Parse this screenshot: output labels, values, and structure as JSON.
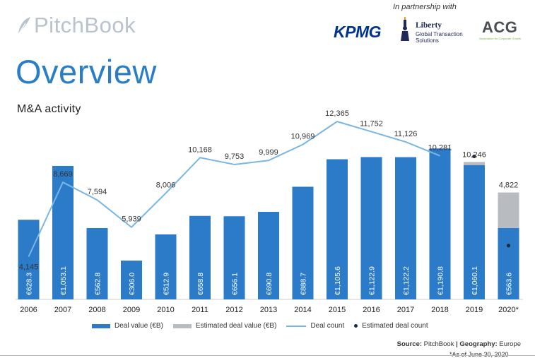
{
  "header": {
    "brand": "PitchBook",
    "partner_label": "In partnership with",
    "partners": {
      "kpmg": "KPMG",
      "liberty_name": "Liberty",
      "liberty_sub": "Global Transaction Solutions",
      "acg": "ACG",
      "acg_sub": "Association for Corporate Growth"
    }
  },
  "page_title": "Overview",
  "subtitle": "M&A activity",
  "colors": {
    "bar": "#2b7bc9",
    "estimated": "#b8bcc1",
    "line": "#79b7e2",
    "dot": "#1f2a38",
    "title": "#2a7dc7"
  },
  "chart_data": {
    "type": "bar",
    "categories": [
      "2006",
      "2007",
      "2008",
      "2009",
      "2010",
      "2011",
      "2012",
      "2013",
      "2014",
      "2015",
      "2016",
      "2017",
      "2018",
      "2019",
      "2020*"
    ],
    "series": [
      {
        "name": "Deal value (€B)",
        "type": "bar",
        "values": [
          628.3,
          1053.1,
          562.8,
          306.0,
          512.9,
          658.8,
          656.1,
          690.8,
          888.7,
          1105.6,
          1122.9,
          1122.2,
          1190.8,
          1060.1,
          563.6
        ],
        "labels": [
          "€628.3",
          "€1,053.1",
          "€562.8",
          "€306.0",
          "€512.9",
          "€658.8",
          "€656.1",
          "€690.8",
          "€888.7",
          "€1,105.6",
          "€1,122.9",
          "€1,122.2",
          "€1,190.8",
          "€1,060.1",
          "€563.6"
        ]
      },
      {
        "name": "Estimated deal value (€B)",
        "type": "bar-stacked",
        "values": [
          0,
          0,
          0,
          0,
          0,
          0,
          0,
          0,
          0,
          0,
          0,
          0,
          0,
          24,
          280
        ]
      },
      {
        "name": "Deal count",
        "type": "line",
        "values": [
          4145,
          8669,
          7594,
          5939,
          8006,
          10168,
          9753,
          9999,
          10969,
          12365,
          11752,
          11126,
          10281,
          null,
          null
        ],
        "labels": [
          "4,145",
          "8,669",
          "7,594",
          "5,939",
          "8,006",
          "10,168",
          "9,753",
          "9,999",
          "10,969",
          "12,365",
          "11,752",
          "11,126",
          "10,281",
          "",
          ""
        ]
      },
      {
        "name": "Estimated deal count",
        "type": "dot",
        "values": [
          null,
          null,
          null,
          null,
          null,
          null,
          null,
          null,
          null,
          null,
          null,
          null,
          null,
          10246,
          4822
        ],
        "labels": [
          "",
          "",
          "",
          "",
          "",
          "",
          "",
          "",
          "",
          "",
          "",
          "",
          "",
          "10,246",
          "4,822"
        ]
      }
    ],
    "legend_position": "bottom",
    "grid": false
  },
  "legend": {
    "deal_value": "Deal value (€B)",
    "estimated_value": "Estimated deal value (€B)",
    "deal_count": "Deal count",
    "estimated_count": "Estimated deal count"
  },
  "source": {
    "prefix": "Source:",
    "source_name": "PitchBook",
    "separator": "|",
    "geo_prefix": "Geography:",
    "geo_value": "Europe",
    "note": "*As of June 30, 2020"
  }
}
